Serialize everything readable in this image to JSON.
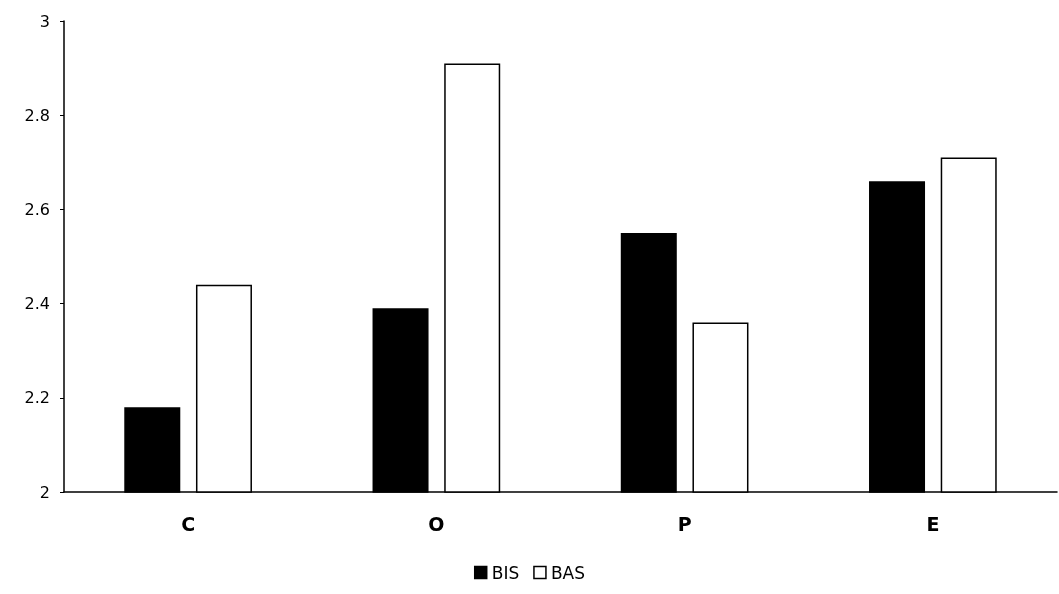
{
  "chart_data": {
    "type": "bar",
    "categories": [
      "C",
      "O",
      "P",
      "E"
    ],
    "series": [
      {
        "name": "BIS",
        "color": "#000000",
        "values": [
          2.18,
          2.39,
          2.55,
          2.66
        ]
      },
      {
        "name": "BAS",
        "color": "#ffffff",
        "values": [
          2.44,
          2.91,
          2.36,
          2.71
        ]
      }
    ],
    "ylim": [
      2,
      3
    ],
    "yticks": [
      2,
      2.2,
      2.4,
      2.6,
      2.8,
      3
    ],
    "grid": false,
    "legend": "bottom"
  }
}
